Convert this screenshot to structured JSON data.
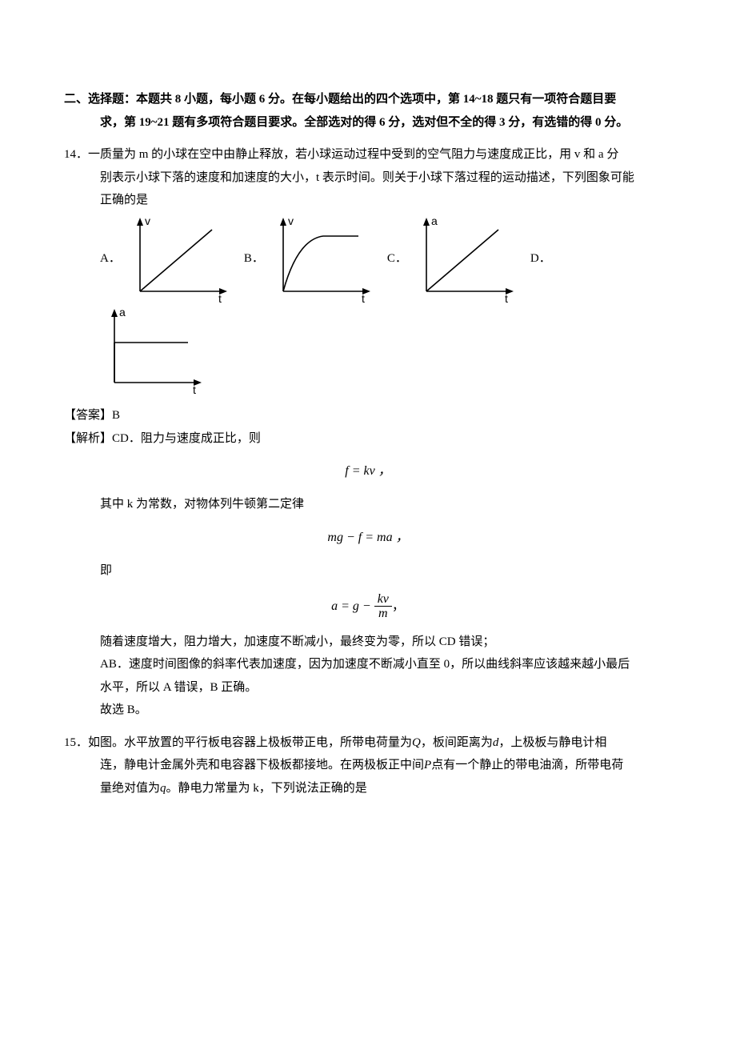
{
  "section": {
    "header_line1": "二、选择题：本题共 8 小题，每小题 6 分。在每小题给出的四个选项中，第 14~18 题只有一项符合题目要",
    "header_line2": "求，第 19~21 题有多项符合题目要求。全部选对的得 6 分，选对但不全的得 3 分，有选错的得 0 分。"
  },
  "q14": {
    "number": "14．",
    "line1": "14．一质量为 m 的小球在空中由静止释放，若小球运动过程中受到的空气阻力与速度成正比，用 v 和 a 分",
    "line2": "别表示小球下落的速度和加速度的大小，t 表示时间。则关于小球下落过程的运动描述，下列图象可能",
    "line3": "正确的是",
    "options": {
      "A": "A．",
      "B": "B．",
      "C": "C．",
      "D": "D．"
    },
    "graphs": {
      "axis_color": "#000000",
      "line_width": 1.6,
      "width": 130,
      "height": 110,
      "A": {
        "y_label": "v",
        "x_label": "t",
        "type": "linear_up"
      },
      "B": {
        "y_label": "v",
        "x_label": "t",
        "type": "saturating"
      },
      "C": {
        "y_label": "a",
        "x_label": "t",
        "type": "linear_up"
      },
      "D": {
        "y_label": "a",
        "x_label": "t",
        "type": "constant"
      }
    },
    "answer_label": "【答案】",
    "answer_value": "B",
    "explain_label": "【解析】",
    "explain_intro": "CD．阻力与速度成正比，则",
    "eq1": "f = kv ，",
    "explain_mid1": "其中 k 为常数，对物体列牛顿第二定律",
    "eq2": "mg − f = ma ，",
    "explain_mid2": "即",
    "eq3_left": "a = g − ",
    "eq3_frac_num": "kv",
    "eq3_frac_den": "m",
    "eq3_tail": "，",
    "explain_cd": "随着速度增大，阻力增大，加速度不断减小，最终变为零，所以 CD 错误；",
    "explain_ab1": "AB．速度时间图像的斜率代表加速度，因为加速度不断减小直至 0，所以曲线斜率应该越来越小最后",
    "explain_ab2": "水平，所以 A 错误，B 正确。",
    "explain_final": "故选 B。"
  },
  "q15": {
    "number": "15．",
    "line1_pre": "15．如图。水平放置的平行板电容器上极板带正电，所带电荷量为",
    "q_var": "Q",
    "line1_mid1": "，板间距离为",
    "d_var": "d",
    "line1_mid2": "，上极板与静电计相",
    "line2_pre": "连，静电计金属外壳和电容器下极板都接地。在两极板正中间",
    "p_var": "P",
    "line2_mid": "点有一个静止的带电油滴，所带电荷",
    "line3_pre": "量绝对值为",
    "q_small_var": "q",
    "line3_tail": "。静电力常量为 k，下列说法正确的是"
  }
}
